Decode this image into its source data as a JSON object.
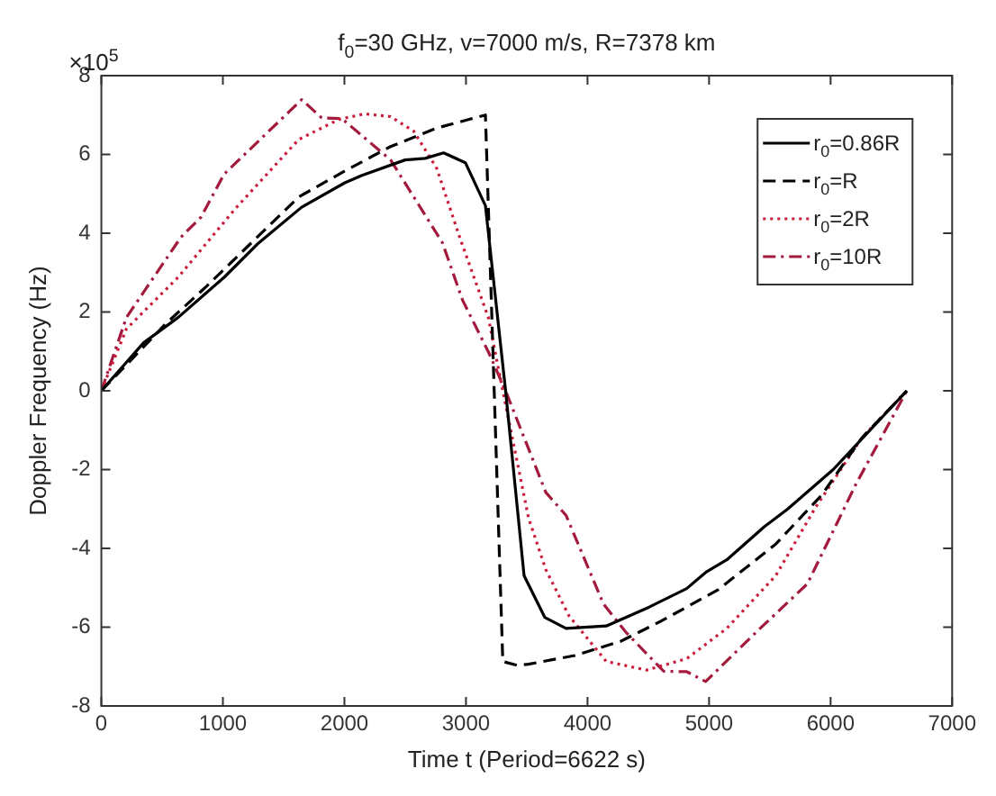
{
  "chart_data": {
    "type": "line",
    "title": "f$_{0}$=30 GHz, v=7000 m/s, R=7378 km",
    "xlabel": "Time t (Period=6622 s)",
    "ylabel": "Doppler Frequency (Hz)",
    "annotations": [
      "×10$^{5}$"
    ],
    "xlim": [
      0,
      7000
    ],
    "xticks": [
      0,
      1000,
      2000,
      3000,
      4000,
      5000,
      6000,
      7000
    ],
    "ylim": [
      -8,
      8
    ],
    "yticks": [
      -8,
      -6,
      -4,
      -2,
      0,
      2,
      4,
      6,
      8
    ],
    "grid": false,
    "legend": "top right",
    "marker": "none",
    "series": [
      {
        "name": "r$_{0}$=0.86R",
        "color": "#000000",
        "line_style": "solid",
        "x": [
          0,
          348,
          631,
          1010,
          1293,
          1648,
          2003,
          2145,
          2499,
          2664,
          2816,
          2995,
          3160,
          3326,
          3478,
          3648,
          3823,
          4154,
          4508,
          4816,
          4981,
          5146,
          5454,
          5643,
          6021,
          6627
        ],
        "values": [
          0,
          1.22,
          1.86,
          2.88,
          3.75,
          4.66,
          5.28,
          5.47,
          5.86,
          5.9,
          6.04,
          5.79,
          4.7,
          0,
          -4.69,
          -5.75,
          -6.03,
          -5.97,
          -5.49,
          -5.02,
          -4.59,
          -4.29,
          -3.45,
          -3.01,
          -2.0,
          0
        ]
      },
      {
        "name": "r$_{0}$=R",
        "color": "#000000",
        "line_style": "dashed",
        "x": [
          0,
          536,
          868,
          1624,
          2003,
          2380,
          2759,
          3160,
          3303,
          3421,
          3515,
          3894,
          4272,
          4603,
          5075,
          5549,
          5926,
          6258,
          6627
        ],
        "values": [
          0,
          1.72,
          2.66,
          4.92,
          5.58,
          6.2,
          6.67,
          7.0,
          -6.87,
          -6.97,
          -6.94,
          -6.72,
          -6.36,
          -5.85,
          -5.05,
          -3.89,
          -2.65,
          -1.19,
          0
        ]
      },
      {
        "name": "r$_{0}$=2R",
        "color": "#cc1a3a",
        "line_style": "dotted",
        "x": [
          0,
          206,
          631,
          1104,
          1624,
          1955,
          2167,
          2380,
          2570,
          2759,
          2948,
          3184,
          3303,
          3515,
          3657,
          3847,
          4154,
          4485,
          4816,
          5146,
          5549,
          5880,
          6258,
          6627
        ],
        "values": [
          0,
          1.57,
          2.88,
          4.63,
          6.38,
          6.89,
          7.03,
          6.96,
          6.59,
          5.65,
          3.9,
          1.86,
          0,
          -3.23,
          -4.54,
          -5.71,
          -6.87,
          -7.09,
          -6.8,
          -6.03,
          -4.69,
          -2.94,
          -1.19,
          0
        ]
      },
      {
        "name": "r$_{0}$=10R",
        "color": "#a31a3c",
        "line_style": "dashdot",
        "x": [
          0,
          206,
          655,
          820,
          1010,
          1648,
          1813,
          1979,
          2380,
          2806,
          2972,
          3184,
          3326,
          3657,
          3823,
          4131,
          4319,
          4627,
          4816,
          4972,
          5407,
          5809,
          6210,
          6627
        ],
        "values": [
          0,
          1.86,
          3.9,
          4.41,
          5.5,
          7.39,
          6.93,
          6.91,
          5.86,
          3.76,
          2.3,
          0.99,
          0,
          -2.58,
          -3.16,
          -5.41,
          -6.14,
          -7.12,
          -7.13,
          -7.38,
          -6.07,
          -4.9,
          -2.36,
          0
        ]
      }
    ]
  }
}
